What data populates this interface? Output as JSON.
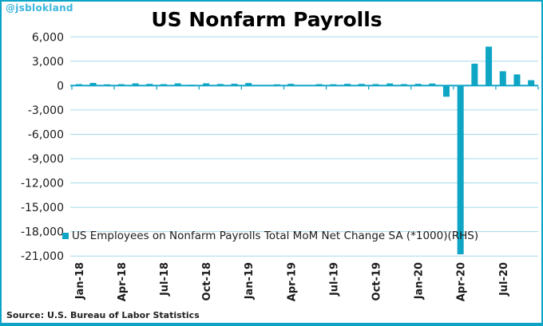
{
  "watermark": "@jsblokland",
  "source": "Source: U.S. Bureau of Labor Statistics",
  "colors": {
    "bar": "#0FA5C5",
    "axis": "#0FA5C5",
    "grid": "#A5D9EA",
    "border": "#0CA3C6",
    "watermark": "#3CB6DC",
    "text": "#1A1A1A"
  },
  "chart_data": {
    "type": "bar",
    "title": "US Nonfarm Payrolls",
    "series_name": "US Employees on Nonfarm Payrolls Total MoM Net Change SA (*1000)(RHS)",
    "x": [
      "Jan-18",
      "Feb-18",
      "Mar-18",
      "Apr-18",
      "May-18",
      "Jun-18",
      "Jul-18",
      "Aug-18",
      "Sep-18",
      "Oct-18",
      "Nov-18",
      "Dec-18",
      "Jan-19",
      "Feb-19",
      "Mar-19",
      "Apr-19",
      "May-19",
      "Jun-19",
      "Jul-19",
      "Aug-19",
      "Sep-19",
      "Oct-19",
      "Nov-19",
      "Dec-19",
      "Jan-20",
      "Feb-20",
      "Mar-20",
      "Apr-20",
      "May-20",
      "Jun-20",
      "Jul-20",
      "Aug-20",
      "Sep-20"
    ],
    "values": [
      176,
      324,
      155,
      175,
      268,
      208,
      178,
      270,
      108,
      277,
      196,
      227,
      312,
      56,
      153,
      216,
      62,
      178,
      166,
      219,
      208,
      185,
      261,
      184,
      214,
      251,
      -1373,
      -20787,
      2699,
      4800,
      1763,
      1371,
      661
    ],
    "ylim": [
      -21000,
      6000
    ],
    "ytick_step": 3000,
    "ytick_labels": [
      "6,000",
      "3,000",
      "0",
      "-3,000",
      "-6,000",
      "-9,000",
      "-12,000",
      "-15,000",
      "-18,000",
      "-21,000"
    ],
    "xticks_shown": [
      "Jan-18",
      "Apr-18",
      "Jul-18",
      "Oct-18",
      "Jan-19",
      "Apr-19",
      "Jul-19",
      "Oct-19",
      "Jan-20",
      "Apr-20",
      "Jul-20"
    ],
    "grid": true,
    "legend_position": "inside-bottom-left",
    "units": "thousands of employees"
  }
}
